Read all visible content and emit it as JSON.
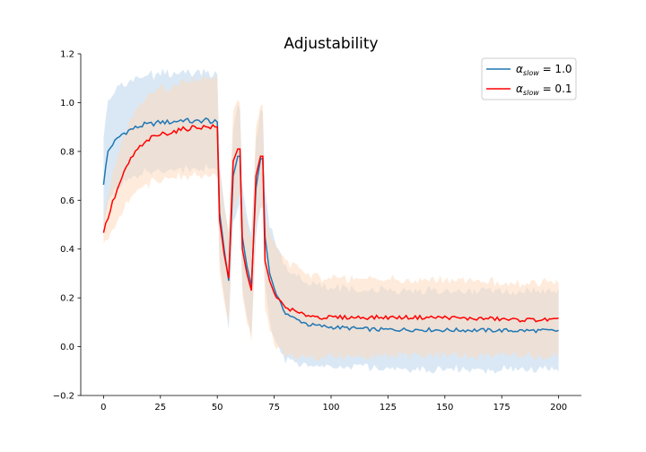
{
  "chart_data": {
    "type": "line",
    "title": "Adjustability",
    "xlabel": "",
    "ylabel": "",
    "xlim": [
      -10,
      210
    ],
    "ylim": [
      -0.2,
      1.2
    ],
    "xticks": [
      "0",
      "25",
      "50",
      "75",
      "100",
      "125",
      "150",
      "175",
      "200"
    ],
    "yticks": [
      "−0.2",
      "0.0",
      "0.2",
      "0.4",
      "0.6",
      "0.8",
      "1.0",
      "1.2"
    ],
    "grid": false,
    "legend_position": "upper-right",
    "series": [
      {
        "name": "α_slow = 1.0",
        "legend_main": "α",
        "legend_sub": "slow",
        "legend_rest": " = 1.0",
        "color": "#1f77b4",
        "band_color": "#aecde8",
        "points": [
          [
            0,
            0.67
          ],
          [
            2,
            0.8
          ],
          [
            4,
            0.83
          ],
          [
            6,
            0.85
          ],
          [
            8,
            0.87
          ],
          [
            10,
            0.88
          ],
          [
            12,
            0.89
          ],
          [
            15,
            0.9
          ],
          [
            18,
            0.91
          ],
          [
            20,
            0.91
          ],
          [
            25,
            0.92
          ],
          [
            30,
            0.92
          ],
          [
            35,
            0.93
          ],
          [
            40,
            0.92
          ],
          [
            45,
            0.93
          ],
          [
            48,
            0.92
          ],
          [
            50,
            0.92
          ],
          [
            51,
            0.55
          ],
          [
            53,
            0.4
          ],
          [
            55,
            0.27
          ],
          [
            57,
            0.7
          ],
          [
            59,
            0.78
          ],
          [
            60,
            0.78
          ],
          [
            61,
            0.45
          ],
          [
            63,
            0.33
          ],
          [
            65,
            0.25
          ],
          [
            67,
            0.65
          ],
          [
            69,
            0.77
          ],
          [
            70,
            0.77
          ],
          [
            71,
            0.45
          ],
          [
            73,
            0.3
          ],
          [
            75,
            0.24
          ],
          [
            78,
            0.17
          ],
          [
            80,
            0.14
          ],
          [
            83,
            0.12
          ],
          [
            85,
            0.11
          ],
          [
            88,
            0.1
          ],
          [
            90,
            0.09
          ],
          [
            95,
            0.085
          ],
          [
            100,
            0.08
          ],
          [
            110,
            0.075
          ],
          [
            120,
            0.07
          ],
          [
            130,
            0.07
          ],
          [
            140,
            0.07
          ],
          [
            150,
            0.068
          ],
          [
            160,
            0.068
          ],
          [
            170,
            0.067
          ],
          [
            180,
            0.066
          ],
          [
            190,
            0.066
          ],
          [
            200,
            0.065
          ]
        ],
        "band_half_width": [
          [
            0,
            0.2
          ],
          [
            10,
            0.2
          ],
          [
            50,
            0.2
          ],
          [
            55,
            0.2
          ],
          [
            75,
            0.2
          ],
          [
            90,
            0.17
          ],
          [
            100,
            0.16
          ],
          [
            200,
            0.16
          ]
        ]
      },
      {
        "name": "α_slow = 0.1",
        "legend_main": "α",
        "legend_sub": "slow",
        "legend_rest": " = 0.1",
        "color": "#ff0000",
        "band_color": "#ffd7b8",
        "points": [
          [
            0,
            0.47
          ],
          [
            2,
            0.53
          ],
          [
            4,
            0.59
          ],
          [
            6,
            0.64
          ],
          [
            8,
            0.69
          ],
          [
            10,
            0.73
          ],
          [
            12,
            0.77
          ],
          [
            15,
            0.81
          ],
          [
            18,
            0.83
          ],
          [
            20,
            0.85
          ],
          [
            25,
            0.87
          ],
          [
            30,
            0.88
          ],
          [
            35,
            0.89
          ],
          [
            40,
            0.9
          ],
          [
            45,
            0.9
          ],
          [
            48,
            0.9
          ],
          [
            50,
            0.9
          ],
          [
            51,
            0.52
          ],
          [
            53,
            0.38
          ],
          [
            55,
            0.28
          ],
          [
            57,
            0.76
          ],
          [
            59,
            0.81
          ],
          [
            60,
            0.81
          ],
          [
            61,
            0.4
          ],
          [
            63,
            0.3
          ],
          [
            65,
            0.23
          ],
          [
            67,
            0.7
          ],
          [
            69,
            0.78
          ],
          [
            70,
            0.78
          ],
          [
            71,
            0.35
          ],
          [
            73,
            0.27
          ],
          [
            75,
            0.22
          ],
          [
            78,
            0.18
          ],
          [
            80,
            0.16
          ],
          [
            83,
            0.15
          ],
          [
            85,
            0.14
          ],
          [
            88,
            0.13
          ],
          [
            90,
            0.13
          ],
          [
            95,
            0.12
          ],
          [
            100,
            0.12
          ],
          [
            110,
            0.12
          ],
          [
            120,
            0.12
          ],
          [
            130,
            0.12
          ],
          [
            140,
            0.12
          ],
          [
            150,
            0.12
          ],
          [
            160,
            0.115
          ],
          [
            170,
            0.115
          ],
          [
            180,
            0.11
          ],
          [
            190,
            0.11
          ],
          [
            200,
            0.11
          ]
        ],
        "band_half_width": [
          [
            0,
            0.05
          ],
          [
            5,
            0.12
          ],
          [
            15,
            0.18
          ],
          [
            50,
            0.2
          ],
          [
            55,
            0.2
          ],
          [
            75,
            0.2
          ],
          [
            90,
            0.17
          ],
          [
            100,
            0.16
          ],
          [
            200,
            0.15
          ]
        ]
      }
    ]
  }
}
